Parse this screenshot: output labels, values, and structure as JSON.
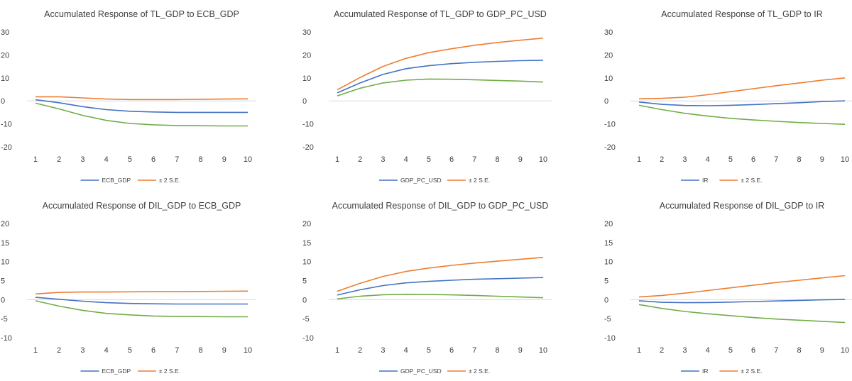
{
  "legend_se_label": "± 2 S.E.",
  "colors": {
    "response": "#4472C4",
    "upper": "#ED7D31",
    "lower": "#70AD47",
    "zero_line": "#D9D9D9",
    "text": "#404040"
  },
  "chart_data": [
    {
      "type": "line",
      "title": "Accumulated Response of TL_GDP to ECB_GDP",
      "x": [
        1,
        2,
        3,
        4,
        5,
        6,
        7,
        8,
        9,
        10
      ],
      "ylim": [
        -20,
        30
      ],
      "yticks": [
        30,
        20,
        10,
        0,
        -10,
        -20
      ],
      "grid": false,
      "legend": "bottom",
      "series": [
        {
          "name": "ECB_GDP",
          "values": [
            0.5,
            -0.8,
            -2.5,
            -3.8,
            -4.5,
            -4.8,
            -5.0,
            -5.0,
            -5.0,
            -5.0
          ]
        },
        {
          "name": "± 2 S.E.",
          "values": [
            1.8,
            1.8,
            1.3,
            0.8,
            0.6,
            0.6,
            0.6,
            0.7,
            0.8,
            0.9
          ]
        },
        {
          "values": [
            -1.0,
            -3.5,
            -6.3,
            -8.5,
            -9.8,
            -10.4,
            -10.7,
            -10.8,
            -10.9,
            -10.9
          ]
        }
      ]
    },
    {
      "type": "line",
      "title": "Accumulated Response of TL_GDP to GDP_PC_USD",
      "x": [
        1,
        2,
        3,
        4,
        5,
        6,
        7,
        8,
        9,
        10
      ],
      "ylim": [
        -20,
        30
      ],
      "yticks": [
        30,
        20,
        10,
        0,
        -10,
        -20
      ],
      "grid": false,
      "legend": "bottom",
      "series": [
        {
          "name": "GDP_PC_USD",
          "values": [
            3.5,
            7.8,
            11.5,
            14.0,
            15.3,
            16.2,
            16.8,
            17.2,
            17.5,
            17.7
          ]
        },
        {
          "name": "± 2 S.E.",
          "values": [
            4.8,
            10.2,
            15.0,
            18.5,
            21.0,
            22.7,
            24.2,
            25.4,
            26.4,
            27.3
          ]
        },
        {
          "values": [
            2.2,
            5.5,
            7.8,
            9.0,
            9.5,
            9.4,
            9.2,
            8.9,
            8.6,
            8.2
          ]
        }
      ]
    },
    {
      "type": "line",
      "title": "Accumulated Response of TL_GDP to IR",
      "x": [
        1,
        2,
        3,
        4,
        5,
        6,
        7,
        8,
        9,
        10
      ],
      "ylim": [
        -20,
        30
      ],
      "yticks": [
        30,
        20,
        10,
        0,
        -10,
        -20
      ],
      "grid": false,
      "legend": "bottom",
      "series": [
        {
          "name": "IR",
          "values": [
            -0.5,
            -1.5,
            -2.0,
            -2.1,
            -1.9,
            -1.6,
            -1.2,
            -0.8,
            -0.3,
            0.0
          ]
        },
        {
          "name": "± 2 S.E.",
          "values": [
            0.9,
            1.1,
            1.6,
            2.7,
            4.0,
            5.3,
            6.6,
            7.8,
            9.0,
            10.0
          ]
        },
        {
          "values": [
            -1.9,
            -3.8,
            -5.4,
            -6.6,
            -7.6,
            -8.3,
            -8.9,
            -9.4,
            -9.8,
            -10.2
          ]
        }
      ]
    },
    {
      "type": "line",
      "title": "Accumulated Response of DIL_GDP to ECB_GDP",
      "x": [
        1,
        2,
        3,
        4,
        5,
        6,
        7,
        8,
        9,
        10
      ],
      "ylim": [
        -10,
        20
      ],
      "yticks": [
        20,
        15,
        10,
        5,
        0,
        -5,
        -10
      ],
      "grid": false,
      "legend": "bottom",
      "series": [
        {
          "name": "ECB_GDP",
          "values": [
            0.6,
            0.1,
            -0.4,
            -0.8,
            -1.0,
            -1.1,
            -1.15,
            -1.15,
            -1.15,
            -1.15
          ]
        },
        {
          "name": "± 2 S.E.",
          "values": [
            1.5,
            1.9,
            2.0,
            2.0,
            2.05,
            2.1,
            2.1,
            2.15,
            2.2,
            2.25
          ]
        },
        {
          "values": [
            -0.3,
            -1.7,
            -2.8,
            -3.6,
            -4.0,
            -4.3,
            -4.4,
            -4.45,
            -4.5,
            -4.5
          ]
        }
      ]
    },
    {
      "type": "line",
      "title": "Accumulated Response of DIL_GDP to GDP_PC_USD",
      "x": [
        1,
        2,
        3,
        4,
        5,
        6,
        7,
        8,
        9,
        10
      ],
      "ylim": [
        -10,
        20
      ],
      "yticks": [
        20,
        15,
        10,
        5,
        0,
        -5,
        -10
      ],
      "grid": false,
      "legend": "bottom",
      "series": [
        {
          "name": "GDP_PC_USD",
          "values": [
            1.2,
            2.6,
            3.7,
            4.4,
            4.8,
            5.1,
            5.35,
            5.5,
            5.65,
            5.8
          ]
        },
        {
          "name": "± 2 S.E.",
          "values": [
            2.2,
            4.3,
            6.1,
            7.4,
            8.3,
            9.0,
            9.6,
            10.1,
            10.6,
            11.1
          ]
        },
        {
          "values": [
            0.2,
            0.9,
            1.3,
            1.4,
            1.35,
            1.25,
            1.1,
            0.9,
            0.7,
            0.5
          ]
        }
      ]
    },
    {
      "type": "line",
      "title": "Accumulated Response of DIL_GDP to IR",
      "x": [
        1,
        2,
        3,
        4,
        5,
        6,
        7,
        8,
        9,
        10
      ],
      "ylim": [
        -10,
        20
      ],
      "yticks": [
        20,
        15,
        10,
        5,
        0,
        -5,
        -10
      ],
      "grid": false,
      "legend": "bottom",
      "series": [
        {
          "name": "IR",
          "values": [
            -0.3,
            -0.7,
            -0.8,
            -0.75,
            -0.65,
            -0.5,
            -0.35,
            -0.2,
            -0.05,
            0.05
          ]
        },
        {
          "name": "± 2 S.E.",
          "values": [
            0.7,
            1.1,
            1.7,
            2.4,
            3.1,
            3.8,
            4.5,
            5.1,
            5.7,
            6.3
          ]
        },
        {
          "values": [
            -1.3,
            -2.3,
            -3.1,
            -3.7,
            -4.2,
            -4.7,
            -5.1,
            -5.4,
            -5.7,
            -6.0
          ]
        }
      ]
    }
  ]
}
